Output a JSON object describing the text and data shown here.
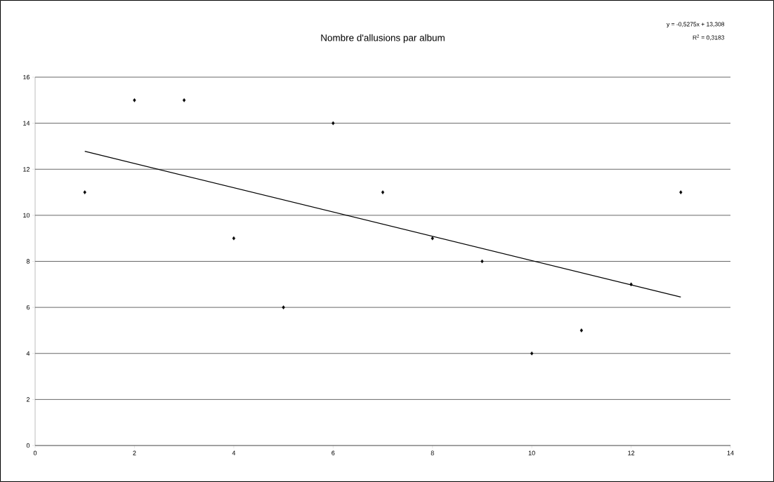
{
  "chart_data": {
    "type": "scatter",
    "title": "Nombre d'allusions par album",
    "annotations": [
      "y = -0,5275x + 13,308",
      "R$^{2}$ = 0,3183"
    ],
    "series": [
      {
        "color": "#000000",
        "marker": "diamond",
        "x": [
          1,
          2,
          3,
          4,
          5,
          6,
          7,
          8,
          9,
          10,
          11,
          12,
          13
        ],
        "values": [
          11,
          15,
          15,
          9,
          6,
          14,
          11,
          9,
          8,
          4,
          5,
          7,
          11
        ]
      },
      {
        "type": "line",
        "color": "#000000",
        "marker": "none",
        "line_style": "solid",
        "x": [
          1,
          13
        ],
        "values": [
          12.78,
          6.45
        ]
      }
    ],
    "xlim": [
      0,
      14
    ],
    "xticks": [
      0,
      2,
      4,
      6,
      8,
      10,
      12,
      14
    ],
    "ylim": [
      0,
      16
    ],
    "yticks": [
      0,
      2,
      4,
      6,
      8,
      10,
      12,
      14,
      16
    ],
    "grid": "y"
  }
}
